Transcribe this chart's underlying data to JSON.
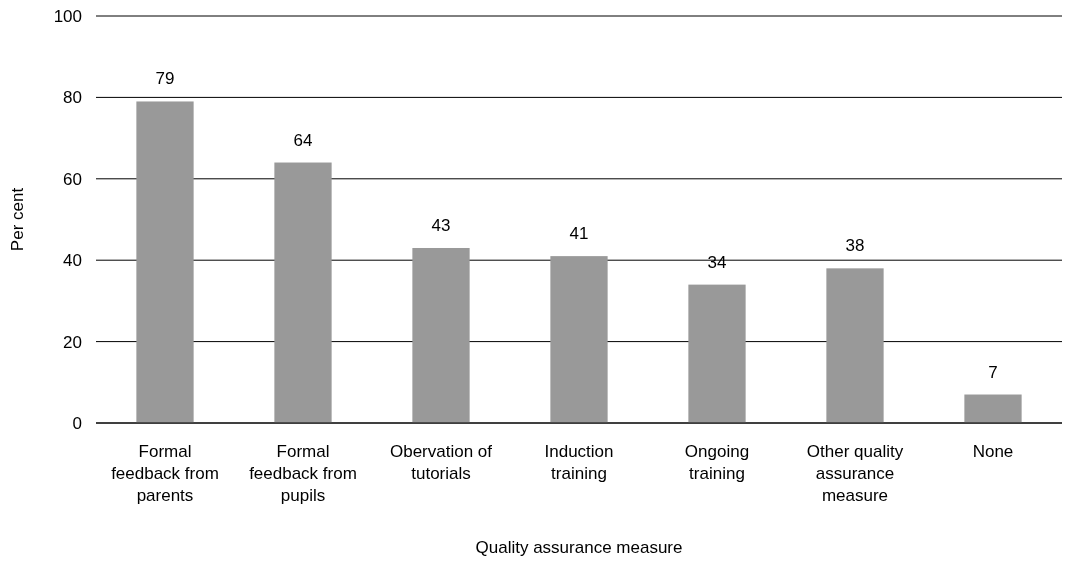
{
  "chart_data": {
    "type": "bar",
    "xlabel": "Quality assurance measure",
    "ylabel": "Per cent",
    "categories": [
      "Formal feedback from parents",
      "Formal feedback from pupils",
      "Obervation of tutorials",
      "Induction training",
      "Ongoing training",
      "Other quality assurance measure",
      "None"
    ],
    "values": [
      79,
      64,
      43,
      41,
      34,
      38,
      7
    ],
    "color": "#999999",
    "ylim": [
      0,
      100
    ],
    "yticks": [
      0,
      20,
      40,
      60,
      80,
      100
    ],
    "grid": "y",
    "data_labels": true
  }
}
